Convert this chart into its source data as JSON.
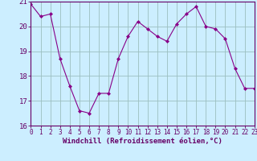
{
  "x": [
    0,
    1,
    2,
    3,
    4,
    5,
    6,
    7,
    8,
    9,
    10,
    11,
    12,
    13,
    14,
    15,
    16,
    17,
    18,
    19,
    20,
    21,
    22,
    23
  ],
  "y": [
    20.9,
    20.4,
    20.5,
    18.7,
    17.6,
    16.6,
    16.5,
    17.3,
    17.3,
    18.7,
    19.6,
    20.2,
    19.9,
    19.6,
    19.4,
    20.1,
    20.5,
    20.8,
    20.0,
    19.9,
    19.5,
    18.3,
    17.5,
    17.5
  ],
  "xlabel": "Windchill (Refroidissement éolien,°C)",
  "xlim": [
    0,
    23
  ],
  "ylim": [
    16,
    21
  ],
  "yticks": [
    16,
    17,
    18,
    19,
    20,
    21
  ],
  "xticks": [
    0,
    1,
    2,
    3,
    4,
    5,
    6,
    7,
    8,
    9,
    10,
    11,
    12,
    13,
    14,
    15,
    16,
    17,
    18,
    19,
    20,
    21,
    22,
    23
  ],
  "line_color": "#880088",
  "marker_color": "#880088",
  "bg_color": "#cceeff",
  "grid_color": "#9bbfbf",
  "axis_color": "#660066",
  "tick_color": "#660066",
  "label_color": "#660066",
  "tick_fontsize": 5.5,
  "xlabel_fontsize": 6.5
}
